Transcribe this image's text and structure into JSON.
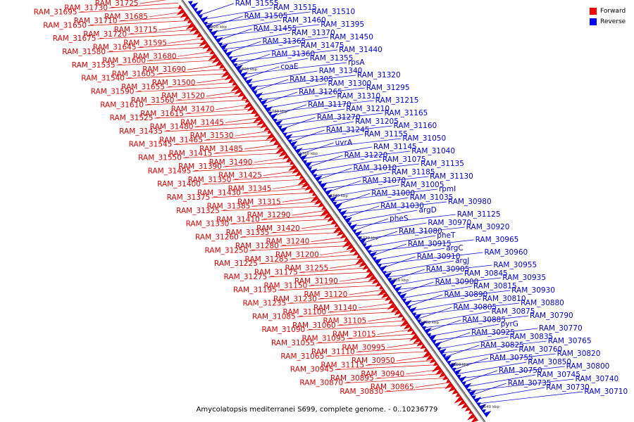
{
  "caption": "Amycolatopsis mediterranei S699, complete genome. - 0..10236779",
  "legend": [
    {
      "label": "Forward",
      "color": "#ff0000"
    },
    {
      "label": "Reverse",
      "color": "#0000ff"
    }
  ],
  "colors": {
    "forward": "#dd0000",
    "reverse": "#0000dd",
    "axis": "#999999"
  },
  "ticks": [
    "6820 kbp",
    "6800 kbp",
    "6780 kbp",
    "6760 kbp",
    "6740 kbp",
    "6720 kbp",
    "6700 kbp",
    "6680 kbp",
    "6660 kbp",
    "6640 kbp"
  ],
  "labels": {
    "forward": [
      "RAM_31725",
      "RAM_31730",
      "RAM_31695",
      "RAM_31685",
      "RAM_31710",
      "RAM_31650",
      "RAM_31715",
      "RAM_31720",
      "RAM_31675",
      "RAM_31595",
      "RAM_31645",
      "RAM_31580",
      "RAM_31680",
      "RAM_31600",
      "RAM_31535",
      "RAM_31690",
      "RAM_31605",
      "RAM_31540",
      "RAM_31500",
      "RAM_31655",
      "RAM_31590",
      "RAM_31520",
      "RAM_31560",
      "RAM_31610",
      "RAM_31470",
      "RAM_31615",
      "RAM_31525",
      "RAM_31445",
      "RAM_31480",
      "RAM_31435",
      "RAM_31530",
      "RAM_31465",
      "RAM_31545",
      "RAM_31485",
      "RAM_31415",
      "RAM_31550",
      "RAM_31490",
      "RAM_31390",
      "RAM_31495",
      "RAM_31425",
      "RAM_31350",
      "RAM_31400",
      "RAM_31345",
      "RAM_31430",
      "RAM_31375",
      "RAM_31315",
      "RAM_31385",
      "RAM_31325",
      "RAM_31290",
      "RAM_31410",
      "RAM_31330",
      "RAM_31420",
      "RAM_31335",
      "RAM_31260",
      "RAM_31240",
      "RAM_31280",
      "RAM_31250",
      "RAM_31200",
      "RAM_31285",
      "RAM_31225",
      "RAM_31255",
      "RAM_31175",
      "RAM_31275",
      "RAM_31190",
      "RAM_31150",
      "RAM_31195",
      "RAM_31120",
      "RAM_31230",
      "RAM_31235",
      "RAM_31140",
      "RAM_31100",
      "RAM_31085",
      "RAM_31105",
      "RAM_31060",
      "RAM_31090",
      "RAM_31015",
      "RAM_31095",
      "RAM_31055",
      "RAM_30995",
      "RAM_31110",
      "RAM_31065",
      "RAM_30950",
      "RAM_31115",
      "RAM_30945",
      "RAM_30940",
      "RAM_30895",
      "RAM_30870",
      "RAM_30865",
      "RAM_30830"
    ],
    "reverse": [
      "RAM_31555",
      "RAM_31515",
      "RAM_31510",
      "RAM_31505",
      "RAM_31460",
      "RAM_31395",
      "RAM_31455",
      "RAM_31370",
      "RAM_31450",
      "RAM_31365",
      "RAM_31475",
      "RAM_31440",
      "RAM_31360",
      "RAM_31355",
      "rpsA",
      "coaE",
      "RAM_31340",
      "RAM_31320",
      "RAM_31305",
      "RAM_31300",
      "RAM_31295",
      "RAM_31265",
      "RAM_31310",
      "RAM_31215",
      "RAM_31170",
      "RAM_31210",
      "RAM_31165",
      "RAM_31270",
      "RAM_31205",
      "RAM_31160",
      "RAM_31245",
      "RAM_31155",
      "RAM_31050",
      "uvrA",
      "RAM_31145",
      "RAM_31040",
      "RAM_31220",
      "RAM_31075",
      "RAM_31135",
      "RAM_31010",
      "RAM_31185",
      "RAM_31130",
      "RAM_31070",
      "RAM_31005",
      "rpmI",
      "RAM_31000",
      "RAM_31035",
      "RAM_30980",
      "RAM_31030",
      "argD",
      "RAM_31125",
      "pheS",
      "RAM_30970",
      "RAM_30920",
      "RAM_31080",
      "pheT",
      "RAM_30965",
      "RAM_30915",
      "argC",
      "RAM_30960",
      "RAM_30910",
      "argJ",
      "RAM_30955",
      "RAM_30905",
      "RAM_30845",
      "RAM_30935",
      "RAM_30900",
      "RAM_30815",
      "RAM_30930",
      "RAM_30890",
      "RAM_30810",
      "RAM_30880",
      "RAM_30805",
      "RAM_30875",
      "RAM_30790",
      "RAM_30885",
      "pyrG",
      "RAM_30770",
      "RAM_30925",
      "RAM_30835",
      "RAM_30765",
      "RAM_30825",
      "RAM_30760",
      "RAM_30820",
      "RAM_30755",
      "RAM_30850",
      "RAM_30800",
      "RAM_30750",
      "RAM_30745",
      "RAM_30740",
      "RAM_30735",
      "RAM_30730",
      "RAM_30710"
    ]
  }
}
